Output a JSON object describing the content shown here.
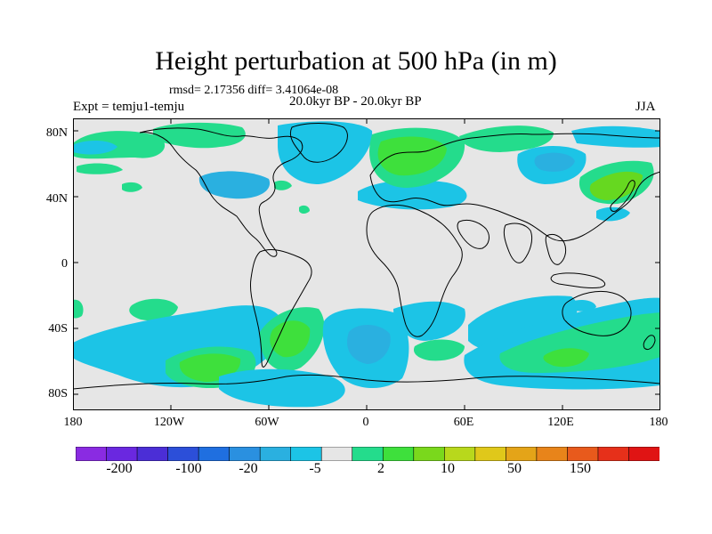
{
  "title": "Height perturbation at 500 hPa (in m)",
  "stats": "rmsd= 2.17356 diff= 3.41064e-08",
  "expt": "Expt = temju1-temju",
  "period": "20.0kyr BP - 20.0kyr BP",
  "season": "JJA",
  "y_axis_labels": [
    "80N",
    "40N",
    "0",
    "40S",
    "80S"
  ],
  "x_axis_labels": [
    "180",
    "120W",
    "60W",
    "0",
    "60E",
    "120E",
    "180"
  ],
  "colorbar": {
    "labels": [
      "-200",
      "-100",
      "-20",
      "-5",
      "2",
      "10",
      "50",
      "150"
    ],
    "colors": [
      "#8a2be2",
      "#6a28e0",
      "#4b2ed6",
      "#2c4fd9",
      "#1f6fe0",
      "#2a90e0",
      "#2ab0e0",
      "#1cc4e6",
      "#e6e6e6",
      "#24dc8c",
      "#3ee03c",
      "#7ad81c",
      "#b8d81c",
      "#e0c81a",
      "#e4a418",
      "#e8841a",
      "#e85a1c",
      "#e6301a",
      "#e01414"
    ]
  },
  "colors": {
    "background": "#e6e6e6",
    "light_blue": "#1cc4e6",
    "mid_blue": "#2ab0e0",
    "teal_green": "#24dc8c",
    "green": "#3ee03c",
    "lime": "#66d820"
  }
}
